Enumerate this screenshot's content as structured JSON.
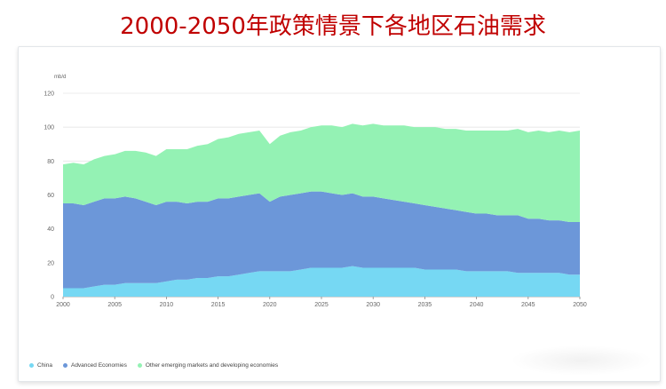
{
  "title": "2000-2050年政策情景下各地区石油需求",
  "chart_data": {
    "type": "area",
    "stacked": true,
    "unit": "mb/d",
    "ylim": [
      0,
      120
    ],
    "yticks": [
      0,
      20,
      40,
      60,
      80,
      100,
      120
    ],
    "xlim": [
      2000,
      2050
    ],
    "xticks": [
      2000,
      2005,
      2010,
      2015,
      2020,
      2025,
      2030,
      2035,
      2040,
      2045,
      2050
    ],
    "grid": true,
    "legend_position": "bottom-left",
    "x": [
      2000,
      2001,
      2002,
      2003,
      2004,
      2005,
      2006,
      2007,
      2008,
      2009,
      2010,
      2011,
      2012,
      2013,
      2014,
      2015,
      2016,
      2017,
      2018,
      2019,
      2020,
      2021,
      2022,
      2023,
      2024,
      2025,
      2026,
      2027,
      2028,
      2029,
      2030,
      2031,
      2032,
      2033,
      2034,
      2035,
      2036,
      2037,
      2038,
      2039,
      2040,
      2041,
      2042,
      2043,
      2044,
      2045,
      2046,
      2047,
      2048,
      2049,
      2050
    ],
    "series": [
      {
        "name": "China",
        "color": "#76d8f3",
        "values": [
          5,
          5,
          5,
          6,
          7,
          7,
          8,
          8,
          8,
          8,
          9,
          10,
          10,
          11,
          11,
          12,
          12,
          13,
          14,
          15,
          15,
          15,
          15,
          16,
          17,
          17,
          17,
          17,
          18,
          17,
          17,
          17,
          17,
          17,
          17,
          16,
          16,
          16,
          16,
          15,
          15,
          15,
          15,
          15,
          14,
          14,
          14,
          14,
          14,
          13,
          13
        ]
      },
      {
        "name": "Advanced Economies",
        "color": "#6c97d9",
        "values": [
          50,
          50,
          49,
          50,
          51,
          51,
          51,
          50,
          48,
          46,
          47,
          46,
          45,
          45,
          45,
          46,
          46,
          46,
          46,
          46,
          41,
          44,
          45,
          45,
          45,
          45,
          44,
          43,
          43,
          42,
          42,
          41,
          40,
          39,
          38,
          38,
          37,
          36,
          35,
          35,
          34,
          34,
          33,
          33,
          34,
          32,
          32,
          31,
          31,
          31,
          31
        ]
      },
      {
        "name": "Other emerging markets and developing economies",
        "color": "#94f2b4",
        "values": [
          23,
          24,
          24,
          25,
          25,
          26,
          27,
          28,
          29,
          29,
          31,
          31,
          32,
          33,
          34,
          35,
          36,
          37,
          37,
          37,
          34,
          36,
          37,
          37,
          38,
          39,
          40,
          40,
          41,
          42,
          43,
          43,
          44,
          45,
          45,
          46,
          47,
          47,
          48,
          48,
          49,
          49,
          50,
          50,
          51,
          51,
          52,
          52,
          53,
          53,
          54
        ]
      }
    ]
  }
}
